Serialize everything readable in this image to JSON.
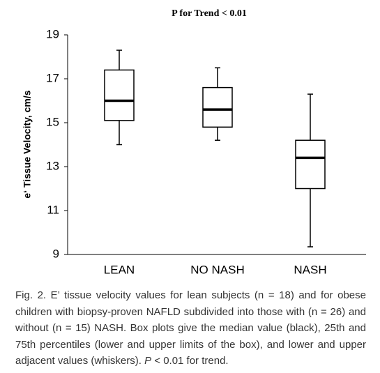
{
  "chart_data": {
    "type": "box",
    "title": "P for Trend < 0.01",
    "y_label": "e‘ Tissue Velocity, cm/s",
    "categories": [
      "LEAN",
      "NO NASH",
      "NASH"
    ],
    "whisker_low": [
      14.0,
      14.2,
      9.35
    ],
    "q1": [
      15.1,
      14.8,
      12.0
    ],
    "median": [
      16.0,
      15.6,
      13.4
    ],
    "q3": [
      17.4,
      16.6,
      14.2
    ],
    "whisker_high": [
      18.3,
      17.5,
      16.3
    ],
    "color": "#000000",
    "ylim": [
      9,
      19
    ],
    "yticks": [
      9,
      11,
      13,
      15,
      17,
      19
    ],
    "grid": false
  },
  "caption": [
    "Fig. 2. E’ tissue velocity values for lean subjects (n = 18) and for obese children with biopsy-proven NAFLD subdivided into those with (n = 26) and without (n = 15) NASH. Box plots give the median value (black), 25th and 75th percentiles (lower and upper limits of the box), and lower and upper adjacent values (whiskers). ",
    "P",
    " < 0.01 for trend."
  ]
}
